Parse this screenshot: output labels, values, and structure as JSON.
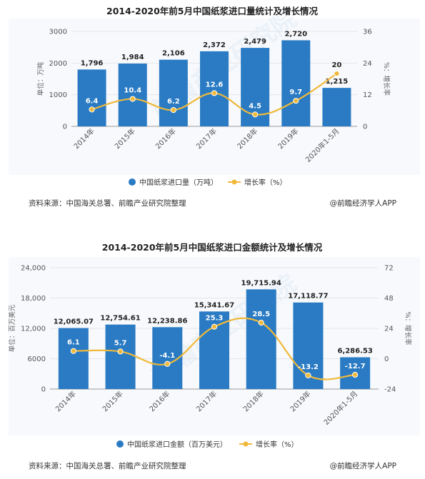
{
  "chart_data": [
    {
      "type": "bar",
      "title": "2014-2020年前5月中国纸浆进口量统计及增长情况",
      "categories": [
        "2014年",
        "2015年",
        "2016年",
        "2017年",
        "2018年",
        "2019年",
        "2020年1-5月"
      ],
      "ylabel": "单位：万吨",
      "y2label": "%：增长率",
      "ylim": [
        0,
        3000
      ],
      "y2lim": [
        0,
        36
      ],
      "yticks": [
        "0",
        "1000",
        "2000",
        "3000"
      ],
      "y2ticks": [
        "0",
        "12",
        "24",
        "36"
      ],
      "series": [
        {
          "name": "中国纸浆进口量（万吨）",
          "type": "bar",
          "axis": "left",
          "color": "#2a7bc4",
          "values": [
            1796,
            1984,
            2106,
            2372,
            2479,
            2720,
            1215
          ],
          "labels": [
            "1,796",
            "1,984",
            "2,106",
            "2,372",
            "2,479",
            "2,720",
            "1,215"
          ]
        },
        {
          "name": "增长率（%）",
          "type": "line",
          "axis": "right",
          "color": "#f0b93a",
          "values": [
            6.4,
            10.4,
            6.2,
            12.6,
            4.5,
            9.7,
            20
          ],
          "labels": [
            "6.4",
            "10.4",
            "6.2",
            "12.6",
            "4.5",
            "9.7",
            "20"
          ]
        }
      ],
      "source": "资料来源：中国海关总署、前瞻产业研究院整理",
      "brand": "@前瞻经济学人APP"
    },
    {
      "type": "bar",
      "title": "2014-2020年前5月中国纸浆进口金额统计及增长情况",
      "categories": [
        "2014年",
        "2015年",
        "2016年",
        "2017年",
        "2018年",
        "2019年",
        "2020年1-5月"
      ],
      "ylabel": "单位：百万美元",
      "y2label": "%：增长率",
      "ylim": [
        0,
        24000
      ],
      "y2lim": [
        -24,
        72
      ],
      "yticks": [
        "0",
        "6000",
        "12,000",
        "18,000",
        "24,000"
      ],
      "y2ticks": [
        "-24",
        "0",
        "24",
        "48",
        "72"
      ],
      "series": [
        {
          "name": "中国纸浆进口金额（百万美元）",
          "type": "bar",
          "axis": "left",
          "color": "#2a7bc4",
          "values": [
            12065.07,
            12754.61,
            12238.86,
            15341.67,
            19715.94,
            17118.77,
            6286.53
          ],
          "labels": [
            "12,065.07",
            "12,754.61",
            "12,238.86",
            "15,341.67",
            "19,715.94",
            "17,118.77",
            "6,286.53"
          ]
        },
        {
          "name": "增长率（%）",
          "type": "line",
          "axis": "right",
          "color": "#f0b93a",
          "values": [
            6.1,
            5.7,
            -4.1,
            25.3,
            28.5,
            -13.2,
            -12.7
          ],
          "labels": [
            "6.1",
            "5.7",
            "-4.1",
            "25.3",
            "28.5",
            "-13.2",
            "-12.7"
          ]
        }
      ],
      "source": "资料来源：中国海关总署、前瞻产业研究院整理",
      "brand": "@前瞻经济学人APP"
    }
  ],
  "watermark": "前瞻产业研究院"
}
